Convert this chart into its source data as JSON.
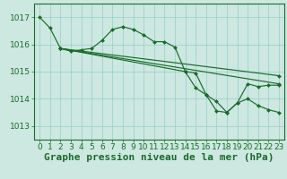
{
  "background_color": "#cce8e0",
  "grid_color": "#99cccc",
  "line_color": "#1a6b2a",
  "xlabel": "Graphe pression niveau de la mer (hPa)",
  "ylim": [
    1012.5,
    1017.5
  ],
  "xlim": [
    -0.5,
    23.5
  ],
  "yticks": [
    1013,
    1014,
    1015,
    1016,
    1017
  ],
  "xticks": [
    0,
    1,
    2,
    3,
    4,
    5,
    6,
    7,
    8,
    9,
    10,
    11,
    12,
    13,
    14,
    15,
    16,
    17,
    18,
    19,
    20,
    21,
    22,
    23
  ],
  "series": [
    {
      "x": [
        0,
        1,
        2,
        3,
        4,
        5,
        6,
        7,
        8,
        9,
        10,
        11,
        12,
        13,
        14,
        15,
        16,
        17,
        18,
        19,
        20,
        21,
        22,
        23
      ],
      "y": [
        1017.0,
        1016.6,
        1015.85,
        1015.75,
        1015.8,
        1015.85,
        1016.15,
        1016.55,
        1016.65,
        1016.55,
        1016.35,
        1016.1,
        1016.1,
        1015.9,
        1015.0,
        1014.95,
        1014.15,
        1013.55,
        1013.5,
        1013.85,
        1014.55,
        1014.45,
        1014.5,
        1014.5
      ]
    },
    {
      "x": [
        2,
        23
      ],
      "y": [
        1015.85,
        1014.85
      ]
    },
    {
      "x": [
        2,
        23
      ],
      "y": [
        1015.85,
        1014.55
      ]
    },
    {
      "x": [
        2,
        14,
        15,
        16,
        17,
        18,
        19,
        20,
        21,
        22,
        23
      ],
      "y": [
        1015.85,
        1015.0,
        1014.4,
        1014.15,
        1013.9,
        1013.5,
        1013.85,
        1014.0,
        1013.75,
        1013.6,
        1013.5
      ]
    }
  ],
  "tick_fontsize": 6.5,
  "xlabel_fontsize": 8,
  "xlabel_fontweight": "bold"
}
